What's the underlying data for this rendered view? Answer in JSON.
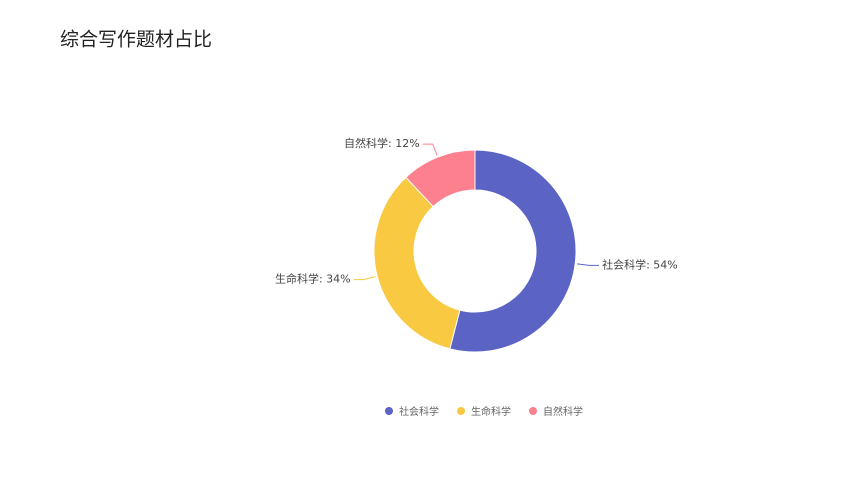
{
  "chart_data": {
    "type": "donut",
    "title": "综合写作题材占比",
    "categories": [
      "社会科学",
      "生命科学",
      "自然科学"
    ],
    "values": [
      54,
      34,
      12
    ],
    "value_labels": [
      "社会科学: 54%",
      "生命科学: 34%",
      "自然科学: 12%"
    ],
    "colors": [
      "#5b63c4",
      "#fac942",
      "#fd808f"
    ],
    "legend": "bottom"
  }
}
